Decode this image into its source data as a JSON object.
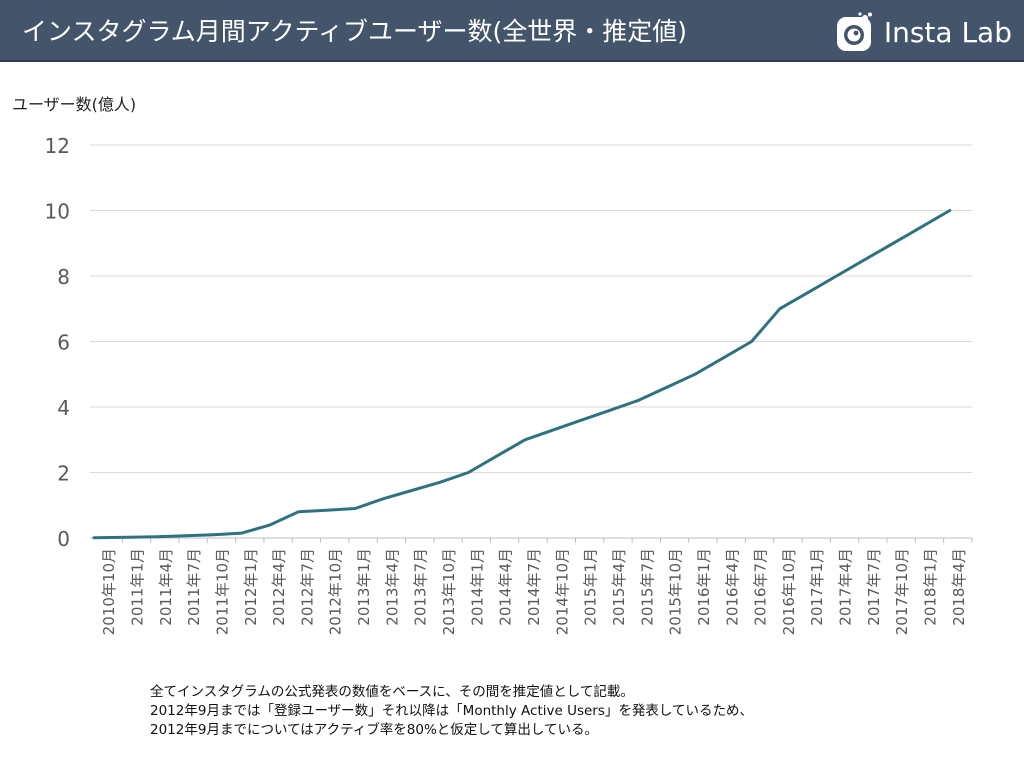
{
  "header": {
    "title": "インスタグラム月間アクティブユーザー数(全世界・推定値)",
    "brand_name": "Insta Lab"
  },
  "colors": {
    "header_bg": "#44546a",
    "line": "#2e7282",
    "grid": "#d9d9d9",
    "tick_text": "#595959"
  },
  "chart_data": {
    "type": "line",
    "title": "",
    "ylabel": "ユーザー数(億人)",
    "xlabel": "",
    "ylim": [
      0,
      12
    ],
    "yticks": [
      0,
      2,
      4,
      6,
      8,
      10,
      12
    ],
    "grid": true,
    "categories": [
      "2010年10月",
      "2011年1月",
      "2011年4月",
      "2011年7月",
      "2011年10月",
      "2012年1月",
      "2012年4月",
      "2012年7月",
      "2012年10月",
      "2013年1月",
      "2013年4月",
      "2013年7月",
      "2013年10月",
      "2014年1月",
      "2014年4月",
      "2014年7月",
      "2014年10月",
      "2015年1月",
      "2015年4月",
      "2015年7月",
      "2015年10月",
      "2016年1月",
      "2016年4月",
      "2016年7月",
      "2016年10月",
      "2017年1月",
      "2017年4月",
      "2017年7月",
      "2017年10月",
      "2018年1月",
      "2018年4月"
    ],
    "points": [
      {
        "x": "2010年10月",
        "y": 0.01
      },
      {
        "x": "2011年1月",
        "y": 0.02
      },
      {
        "x": "2011年4月",
        "y": 0.04
      },
      {
        "x": "2011年7月",
        "y": 0.07
      },
      {
        "x": "2011年10月",
        "y": 0.1
      },
      {
        "x": "2012年1月",
        "y": 0.15
      },
      {
        "x": "2012年4月",
        "y": 0.4
      },
      {
        "x": "2012年7月",
        "y": 0.8
      },
      {
        "x": "2012年10月",
        "y": 0.85
      },
      {
        "x": "2013年1月",
        "y": 0.9
      },
      {
        "x": "2013年4月",
        "y": 1.2
      },
      {
        "x": "2013年7月",
        "y": 1.45
      },
      {
        "x": "2013年10月",
        "y": 1.7
      },
      {
        "x": "2014年1月",
        "y": 2.0
      },
      {
        "x": "2014年4月",
        "y": 2.5
      },
      {
        "x": "2014年7月",
        "y": 3.0
      },
      {
        "x": "2014年10月",
        "y": 3.3
      },
      {
        "x": "2015年1月",
        "y": 3.6
      },
      {
        "x": "2015年4月",
        "y": 3.9
      },
      {
        "x": "2015年7月",
        "y": 4.2
      },
      {
        "x": "2015年10月",
        "y": 4.6
      },
      {
        "x": "2016年1月",
        "y": 5.0
      },
      {
        "x": "2016年4月",
        "y": 5.5
      },
      {
        "x": "2016年7月",
        "y": 6.0
      },
      {
        "x": "2016年10月",
        "y": 7.0
      },
      {
        "x": "2017年1月",
        "y": 7.5
      },
      {
        "x": "2017年4月",
        "y": 8.0
      },
      {
        "x": "2017年7月",
        "y": 8.5
      },
      {
        "x": "2017年10月",
        "y": 9.0
      },
      {
        "x": "2018年1月",
        "y": 9.5
      },
      {
        "x": "2018年4月",
        "y": 10.0
      }
    ]
  },
  "footnote": {
    "line1": "全てインスタグラムの公式発表の数値をベースに、その間を推定値として記載。",
    "line2": "2012年9月までは「登録ユーザー数」それ以降は「Monthly Active Users」を発表しているため、",
    "line3": "2012年9月までについてはアクティブ率を80%と仮定して算出している。"
  }
}
